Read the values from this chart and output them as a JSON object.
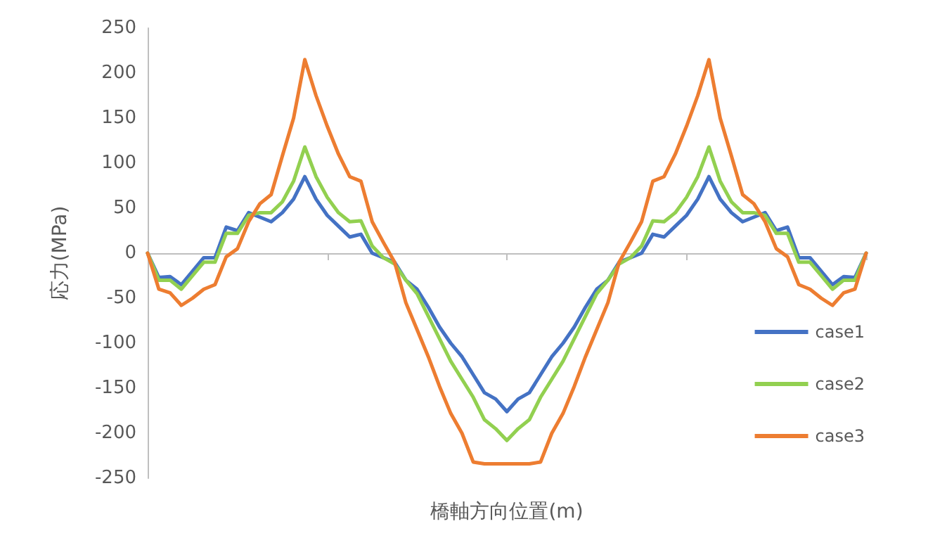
{
  "chart_data": {
    "type": "line",
    "xlabel": "橋軸方向位置(m)",
    "ylabel": "応力(MPa)",
    "categories": [
      null,
      null,
      null,
      null,
      null,
      null,
      null,
      null,
      null,
      null,
      null,
      null,
      null,
      null,
      null,
      null,
      null,
      null,
      null,
      null,
      null,
      null,
      null,
      null,
      null,
      null,
      null,
      null,
      null,
      null,
      null,
      null,
      null,
      null,
      null,
      null,
      null,
      null,
      null,
      null,
      null,
      null,
      null,
      null,
      null,
      null,
      null,
      null,
      null,
      null,
      null,
      null,
      null,
      null,
      null,
      null,
      null,
      null,
      null,
      null,
      null,
      null,
      null,
      null,
      null
    ],
    "series": [
      {
        "name": "case1",
        "color": "#4472c4",
        "values": [
          0,
          -27,
          -26,
          -35,
          -20,
          -5,
          -5,
          29,
          25,
          45,
          40,
          35,
          45,
          60,
          85,
          60,
          42,
          30,
          18,
          21,
          0,
          -5,
          -10,
          -30,
          -40,
          -60,
          -82,
          -100,
          -115,
          -135,
          -155,
          -162,
          -176,
          -162,
          -155,
          -135,
          -115,
          -100,
          -82,
          -60,
          -40,
          -30,
          -10,
          -5,
          0,
          21,
          18,
          30,
          42,
          60,
          85,
          60,
          45,
          35,
          40,
          45,
          25,
          29,
          -5,
          -5,
          -20,
          -35,
          -26,
          -27,
          0
        ]
      },
      {
        "name": "case2",
        "color": "#92d050",
        "values": [
          0,
          -30,
          -30,
          -40,
          -25,
          -10,
          -10,
          22,
          22,
          42,
          45,
          45,
          57,
          80,
          118,
          85,
          62,
          45,
          35,
          36,
          8,
          -5,
          -12,
          -30,
          -45,
          -70,
          -95,
          -120,
          -140,
          -160,
          -185,
          -195,
          -208,
          -195,
          -185,
          -160,
          -140,
          -120,
          -95,
          -70,
          -45,
          -30,
          -12,
          -5,
          8,
          36,
          35,
          45,
          62,
          85,
          118,
          80,
          57,
          45,
          45,
          42,
          22,
          22,
          -10,
          -10,
          -25,
          -40,
          -30,
          -30,
          0
        ]
      },
      {
        "name": "case3",
        "color": "#ed7d31",
        "values": [
          0,
          -40,
          -44,
          -58,
          -50,
          -40,
          -35,
          -4,
          5,
          35,
          55,
          65,
          108,
          150,
          215,
          175,
          141,
          110,
          85,
          80,
          35,
          12,
          -10,
          -55,
          -85,
          -115,
          -148,
          -178,
          -200,
          -232,
          -234,
          -234,
          -234,
          -234,
          -234,
          -232,
          -200,
          -178,
          -148,
          -115,
          -85,
          -55,
          -10,
          12,
          35,
          80,
          85,
          110,
          141,
          175,
          215,
          150,
          108,
          65,
          55,
          35,
          5,
          -4,
          -35,
          -40,
          -50,
          -58,
          -44,
          -40,
          0
        ]
      }
    ],
    "ylim": [
      -250,
      250
    ],
    "yticks": [
      -250,
      -200,
      -150,
      -100,
      -50,
      0,
      50,
      100,
      150,
      200,
      250
    ],
    "legend": "right",
    "marker": "none",
    "line_style": "solid"
  }
}
